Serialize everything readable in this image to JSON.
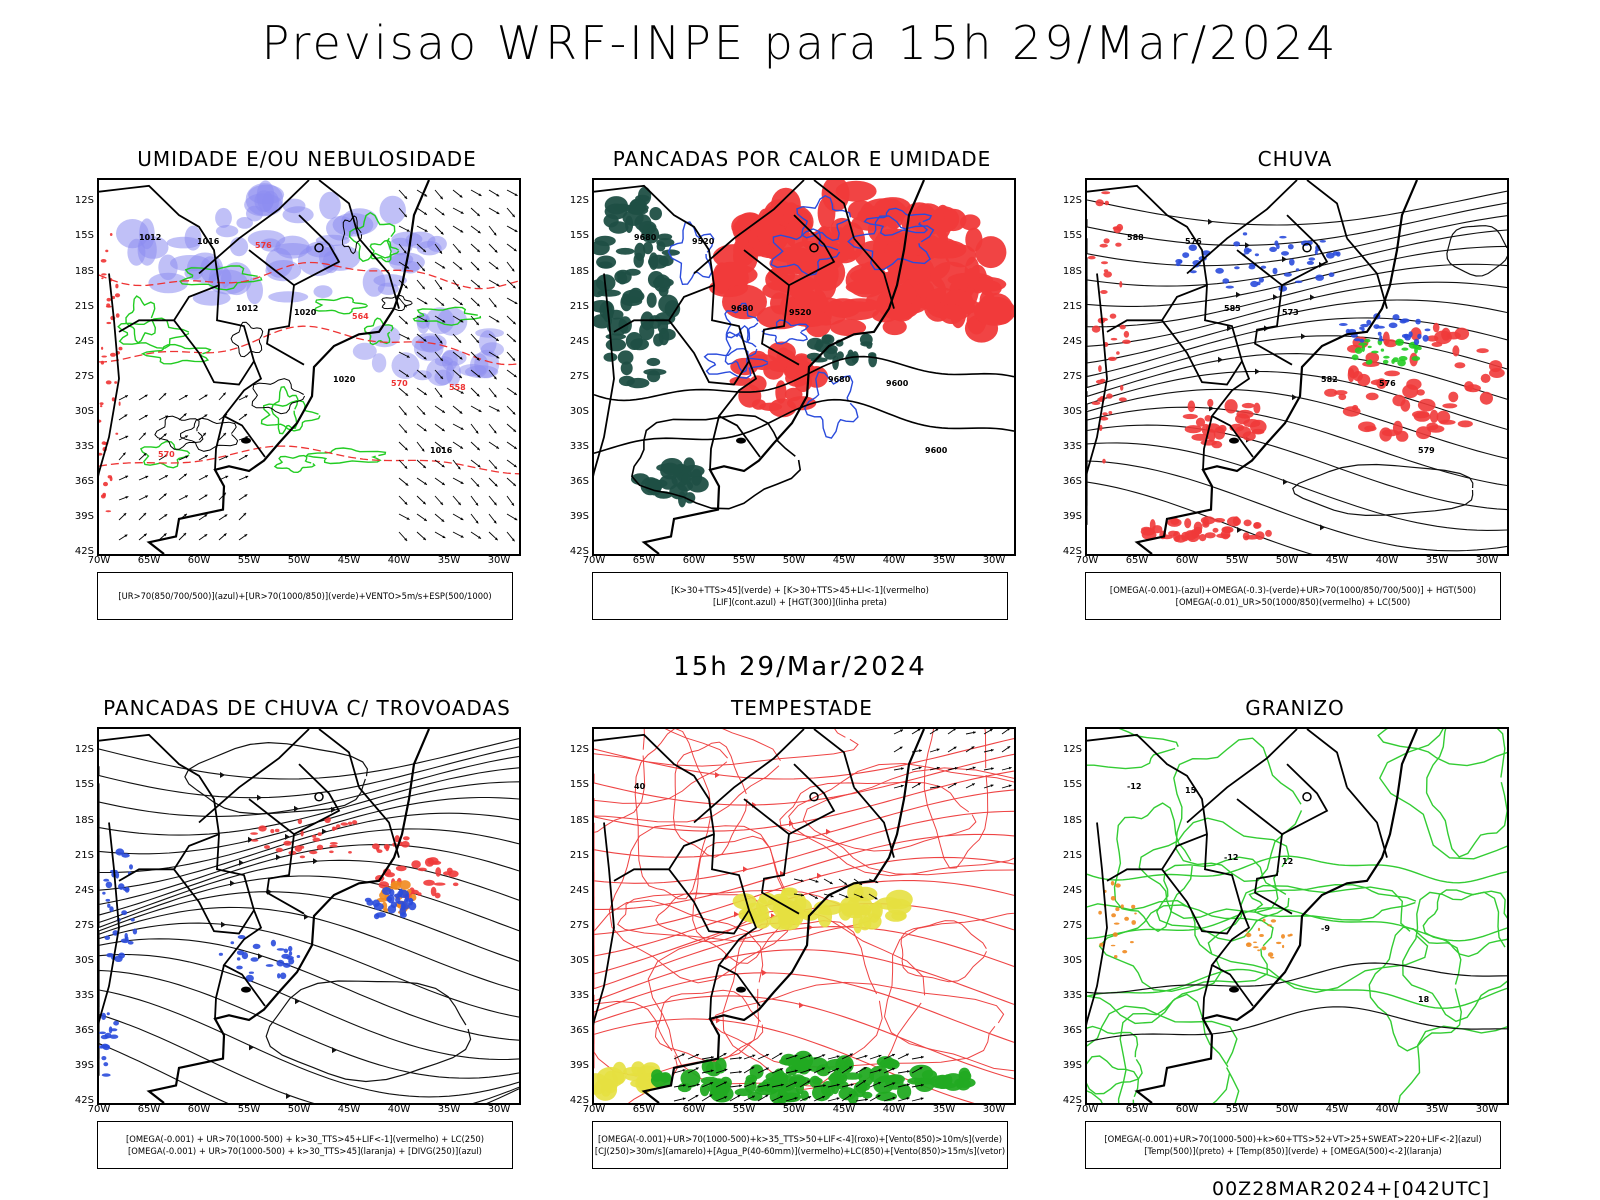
{
  "main_title": "Previsao WRF-INPE  para 15h 29/Mar/2024",
  "mid_title": "15h 29/Mar/2024",
  "footer": "00Z28MAR2024+[042UTC]",
  "lat_labels": [
    "12S",
    "15S",
    "18S",
    "21S",
    "24S",
    "27S",
    "30S",
    "33S",
    "36S",
    "39S",
    "42S"
  ],
  "lon_labels": [
    "70W",
    "65W",
    "60W",
    "55W",
    "50W",
    "45W",
    "40W",
    "35W",
    "30W"
  ],
  "panels": [
    {
      "title": "UMIDADE E/OU NEBULOSIDADE",
      "legend": [
        "[UR>70(850/700/500)](azul)+[UR>70(1000/850)](verde)+VENTO>5m/s+ESP(500/1000)"
      ],
      "contour_labels": [
        "1012",
        "1012",
        "1020",
        "1016",
        "1016",
        "1020",
        "570",
        "570",
        "576",
        "564",
        "558"
      ]
    },
    {
      "title": "PANCADAS POR CALOR E UMIDADE",
      "legend": [
        "[K>30+TTS>45](verde) + [K>30+TTS>45+LI<-1](vermelho)",
        "[LIF](cont.azul) + [HGT(300)](linha preta)"
      ],
      "contour_labels": [
        "9680",
        "9680",
        "9680",
        "9600",
        "9520",
        "9520",
        "9600"
      ]
    },
    {
      "title": "CHUVA",
      "legend": [
        "[OMEGA(-0.001)-(azul)+OMEGA(-0.3)-(verde)+UR>70(1000/850/700/500)] + HGT(500)",
        "[OMEGA(-0.01)_UR>50(1000/850)(vermelho) + LC(500)"
      ],
      "contour_labels": [
        "588",
        "585",
        "582",
        "579",
        "576",
        "573",
        "576"
      ]
    },
    {
      "title": "PANCADAS DE CHUVA C/ TROVOADAS",
      "legend": [
        "[OMEGA(-0.001) + UR>70(1000-500) + k>30_TTS>45+LIF<-1](vermelho) + LC(250)",
        "[OMEGA(-0.001) + UR>70(1000-500) + k>30_TTS>45](laranja) + [DIVG(250)](azul)"
      ],
      "contour_labels": []
    },
    {
      "title": "TEMPESTADE",
      "legend": [
        "[OMEGA(-0.001)+UR>70(1000-500)+k>35_TTS>50+LIF<-4](roxo)+[Vento(850)>10m/s](verde)",
        "[CJ(250)>30m/s](amarelo)+[Agua_P(40-60mm)](vermelho)+LC(850)+[Vento(850)>15m/s](vetor)"
      ],
      "contour_labels": [
        "40"
      ]
    },
    {
      "title": "GRANIZO",
      "legend": [
        "[OMEGA(-0.001)+UR>70(1000-500)+k>60+TTS>52+VT>25+SWEAT>220+LIF<-2](azul)",
        "[Temp(500)](preto) + [Temp(850)](verde) + [OMEGA(500)<-2](laranja)"
      ],
      "contour_labels": [
        "-12",
        "-12",
        "-9",
        "18",
        "15",
        "12"
      ]
    }
  ]
}
